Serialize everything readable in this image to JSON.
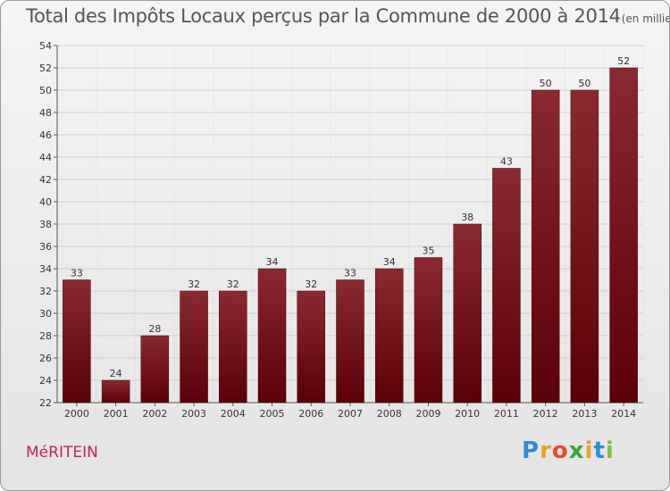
{
  "title": "Total des Impôts Locaux perçus par la Commune de 2000 à 2014",
  "title_unit": "(en milliers d'€)",
  "commune": "MéRITEIN",
  "logo": {
    "letters": [
      "P",
      "r",
      "o",
      "x",
      "i",
      "t",
      "i"
    ],
    "colors": [
      "#2a8fd6",
      "#f0a020",
      "#e94a2a",
      "#3aa53a",
      "#f0a020",
      "#2a8fd6",
      "#7fbf3f"
    ]
  },
  "colors": {
    "bar_top": "#8a2a30",
    "bar_bottom": "#5a0006",
    "commune": "#c0254f"
  },
  "chart_data": {
    "type": "bar",
    "title": "Total des Impôts Locaux perçus par la Commune de 2000 à 2014",
    "xlabel": "",
    "ylabel": "",
    "ylim": [
      22,
      54
    ],
    "yticks": [
      22,
      24,
      26,
      28,
      30,
      32,
      34,
      36,
      38,
      40,
      42,
      44,
      46,
      48,
      50,
      52,
      54
    ],
    "grid": true,
    "categories": [
      "2000",
      "2001",
      "2002",
      "2003",
      "2004",
      "2005",
      "2006",
      "2007",
      "2008",
      "2009",
      "2010",
      "2011",
      "2012",
      "2013",
      "2014"
    ],
    "values": [
      33,
      24,
      28,
      32,
      32,
      34,
      32,
      33,
      34,
      35,
      38,
      43,
      50,
      50,
      52
    ]
  }
}
